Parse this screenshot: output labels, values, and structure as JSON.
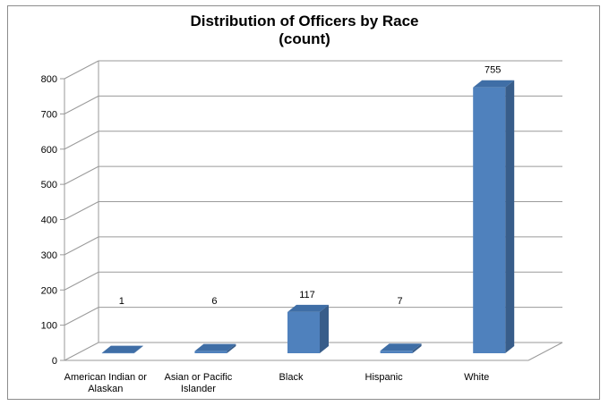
{
  "chart_data": {
    "type": "bar",
    "title_line1": "Distribution of Officers by Race",
    "title_line2": "(count)",
    "categories": [
      [
        "American Indian or",
        "Alaskan"
      ],
      [
        "Asian or Pacific",
        "Islander"
      ],
      [
        "Black"
      ],
      [
        "Hispanic"
      ],
      [
        "White"
      ]
    ],
    "values": [
      1,
      6,
      117,
      7,
      755
    ],
    "data_labels": [
      "1",
      "6",
      "117",
      "7",
      "755"
    ],
    "ylim": [
      0,
      800
    ],
    "yticks": [
      0,
      100,
      200,
      300,
      400,
      500,
      600,
      700,
      800
    ],
    "grid": true,
    "style": "3d",
    "colors": {
      "bar_front": "#4f81bd",
      "bar_side": "#385d8a",
      "bar_top": "#3f6ea6",
      "grid": "#9a9a9a"
    }
  }
}
